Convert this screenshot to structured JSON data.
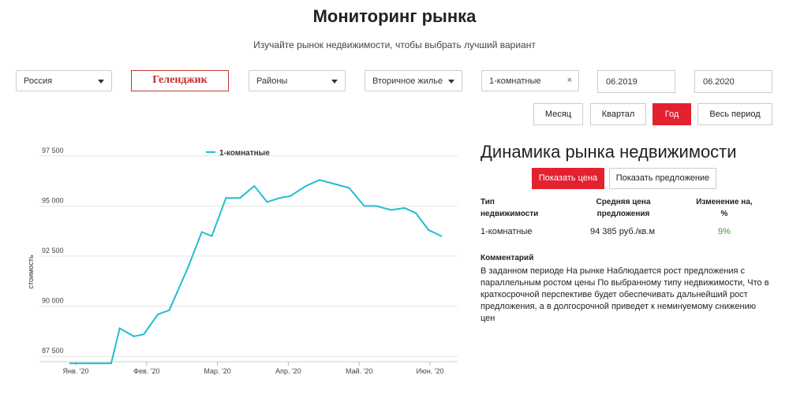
{
  "header": {
    "title": "Мониторинг рынка",
    "subtitle": "Изучайте рынок недвижимости, чтобы выбрать лучший вариант"
  },
  "filters": {
    "country": "Россия",
    "city": "Геленджик",
    "district": "Районы",
    "market": "Вторичное жилье",
    "rooms": "1-комнатные",
    "rooms_clear": "×",
    "date_from": "06.2019",
    "date_to": "06.2020"
  },
  "periods": [
    {
      "label": "Месяц",
      "active": false
    },
    {
      "label": "Квартал",
      "active": false
    },
    {
      "label": "Год",
      "active": true
    },
    {
      "label": "Весь период",
      "active": false
    }
  ],
  "chart_data": {
    "type": "line",
    "legend": "1-комнатные",
    "ylabel": "стоимость",
    "x_ticks": [
      "Янв. '20",
      "Фев. '20",
      "Мар. '20",
      "Апр. '20",
      "Май. '20",
      "Июн. '20"
    ],
    "y_ticks": [
      "87 500",
      "90 000",
      "92 500",
      "95 000",
      "97 500"
    ],
    "ylim": [
      86800,
      98200
    ],
    "xlim": [
      0,
      5.4
    ],
    "series": [
      {
        "name": "1-комнатные",
        "color": "#1fbfcf",
        "points": [
          [
            -0.08,
            87150
          ],
          [
            0.5,
            87150
          ],
          [
            0.62,
            88900
          ],
          [
            0.82,
            88500
          ],
          [
            0.96,
            88600
          ],
          [
            1.16,
            89600
          ],
          [
            1.32,
            89800
          ],
          [
            1.58,
            91900
          ],
          [
            1.78,
            93700
          ],
          [
            1.92,
            93500
          ],
          [
            2.12,
            95400
          ],
          [
            2.32,
            95400
          ],
          [
            2.52,
            96000
          ],
          [
            2.7,
            95200
          ],
          [
            2.88,
            95400
          ],
          [
            3.03,
            95500
          ],
          [
            3.25,
            96000
          ],
          [
            3.44,
            96300
          ],
          [
            3.65,
            96100
          ],
          [
            3.86,
            95900
          ],
          [
            4.07,
            95000
          ],
          [
            4.24,
            95000
          ],
          [
            4.45,
            94800
          ],
          [
            4.64,
            94900
          ],
          [
            4.8,
            94650
          ],
          [
            4.98,
            93800
          ],
          [
            5.16,
            93500
          ]
        ]
      }
    ]
  },
  "dynamics": {
    "title": "Динамика рынка недвижимости",
    "show_price": "Показать цена",
    "show_offer": "Показать предложение",
    "col1": [
      "Тип",
      "недвижимости"
    ],
    "col2": [
      "Средняя цена",
      "предложения"
    ],
    "col3": [
      "Изменение на,",
      "%"
    ],
    "row": {
      "type": "1-комнатные",
      "price": "94 385 руб./кв.м",
      "change": "9%"
    },
    "comment_title": "Комментарий",
    "comment": "В заданном периоде На рынке Наблюдается рост предложения с параллельным ростом цены По выбранному типу недвижимости, Что в краткосрочной перспективе будет обеспечивать дальнейший рост предложения, а в долгосрочной приведет к неминуемому снижению цен"
  }
}
